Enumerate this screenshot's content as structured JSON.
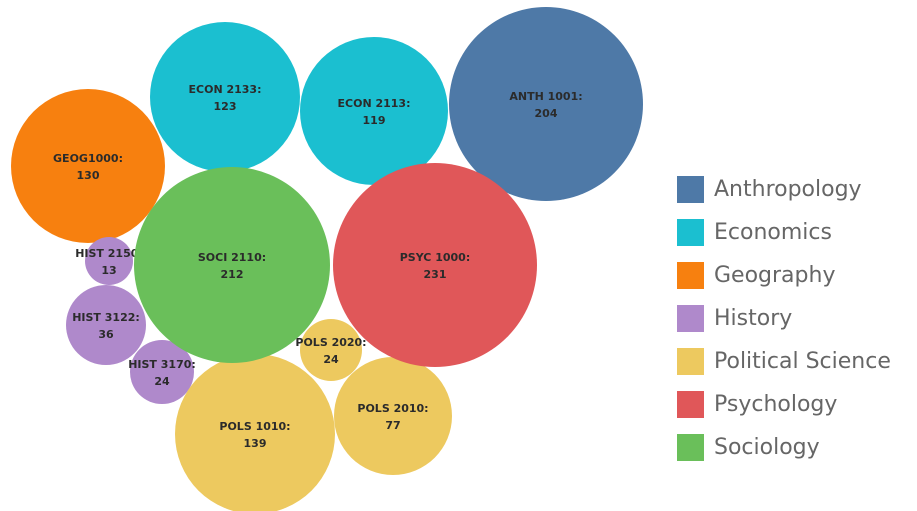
{
  "chart_data": {
    "type": "bubble",
    "title": "",
    "categories": [
      "Anthropology",
      "Economics",
      "Geography",
      "History",
      "Political Science",
      "Psychology",
      "Sociology"
    ],
    "colors": {
      "Anthropology": "#4e79a7",
      "Economics": "#1bbfd0",
      "Geography": "#f7800f",
      "History": "#af89cb",
      "Political Science": "#edc95f",
      "Psychology": "#e05759",
      "Sociology": "#6abf5a"
    },
    "bubbles": [
      {
        "course": "ANTH 1001:",
        "value": "204",
        "category": "Anthropology"
      },
      {
        "course": "ECON 2133:",
        "value": "123",
        "category": "Economics"
      },
      {
        "course": "ECON 2113:",
        "value": "119",
        "category": "Economics"
      },
      {
        "course": "GEOG1000:",
        "value": "130",
        "category": "Geography"
      },
      {
        "course": "HIST 2150:",
        "value": "13",
        "category": "History"
      },
      {
        "course": "HIST 3122:",
        "value": "36",
        "category": "History"
      },
      {
        "course": "HIST 3170:",
        "value": "24",
        "category": "History"
      },
      {
        "course": "POLS 1010:",
        "value": "139",
        "category": "Political Science"
      },
      {
        "course": "POLS 2010:",
        "value": "77",
        "category": "Political Science"
      },
      {
        "course": "POLS 2020:",
        "value": "24",
        "category": "Political Science"
      },
      {
        "course": "PSYC 1000:",
        "value": "231",
        "category": "Psychology"
      },
      {
        "course": "SOCI 2110:",
        "value": "212",
        "category": "Sociology"
      }
    ]
  }
}
